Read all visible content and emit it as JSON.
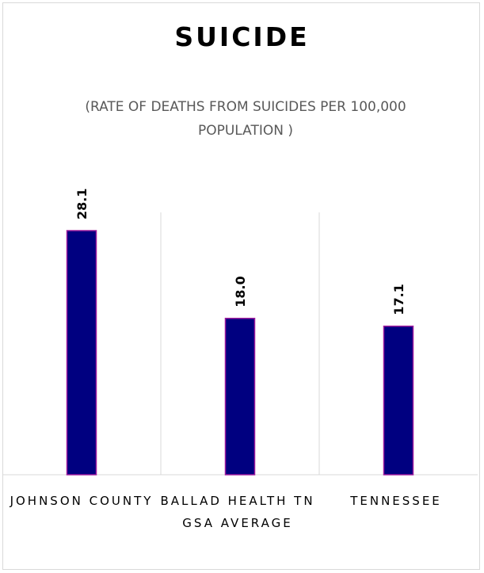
{
  "chart_data": {
    "type": "bar",
    "title": "SUICIDE",
    "subtitle": "(RATE OF DEATHS FROM SUICIDES PER 100,000 POPULATION )",
    "categories": [
      "JOHNSON COUNTY",
      "BALLAD HEALTH TN GSA AVERAGE",
      "TENNESSEE"
    ],
    "values": [
      28.1,
      18.0,
      17.1
    ],
    "data_labels": [
      "28.1",
      "18.0",
      "17.1"
    ],
    "ylim": [
      0,
      30
    ],
    "grid": "vertical category separators",
    "colors": {
      "bar_fill": "#000080",
      "bar_stroke": "#9e1a9e",
      "grid": "#d9d9d9"
    }
  }
}
